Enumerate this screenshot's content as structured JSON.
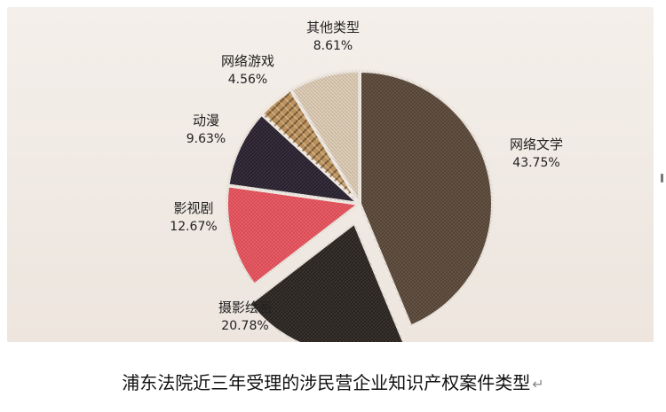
{
  "chart_data": {
    "type": "pie",
    "title": "浦东法院近三年受理的涉民营企业知识产权案件类型",
    "legend": "none",
    "slices": [
      {
        "name": "网络文学",
        "value": 43.75,
        "label": "43.75%",
        "color": "#5a4839",
        "exploded": false
      },
      {
        "name": "摄影绘画",
        "value": 20.78,
        "label": "20.78%",
        "color": "#2b2520",
        "exploded": true
      },
      {
        "name": "影视剧",
        "value": 12.67,
        "label": "12.67%",
        "color": "#e8525c",
        "exploded": false
      },
      {
        "name": "动漫",
        "value": 9.63,
        "label": "9.63%",
        "color": "#2a2230",
        "exploded": false
      },
      {
        "name": "网络游戏",
        "value": 4.56,
        "label": "4.56%",
        "color": "#b9915f",
        "exploded": false
      },
      {
        "name": "其他类型",
        "value": 8.61,
        "label": "8.61%",
        "color": "#dccab3",
        "exploded": false
      }
    ]
  },
  "caption": {
    "text": "浦东法院近三年受理的涉民营企业知识产权案件类型",
    "return_mark": "↵"
  }
}
